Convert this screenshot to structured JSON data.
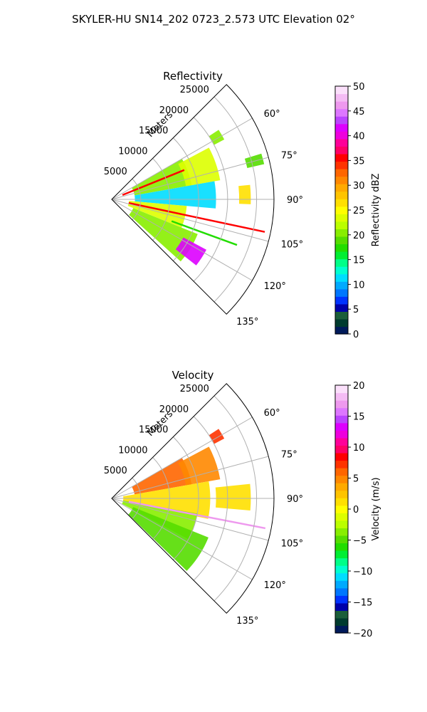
{
  "figure": {
    "title": "SKYLER-HU  SN14_202  0723_2.573 UTC Elevation 02°"
  },
  "chart_data": [
    {
      "type": "heatmap",
      "projection": "polar-sector",
      "title": "Reflectivity",
      "radial_axis_label": "Meters",
      "radial_ticks": [
        "5000",
        "10000",
        "15000",
        "20000",
        "25000"
      ],
      "radial_tick_values": [
        5000,
        10000,
        15000,
        20000,
        25000
      ],
      "radial_range": [
        0,
        28000
      ],
      "azimuth_range_deg": [
        45,
        135
      ],
      "azimuth_ticks": [
        "60°",
        "75°",
        "90°",
        "105°",
        "120°",
        "135°"
      ],
      "azimuth_tick_values": [
        60,
        75,
        90,
        105,
        120,
        135
      ],
      "grid": true,
      "colorbar": {
        "label": "Reflectivity dBZ",
        "range": [
          0,
          50
        ],
        "ticks": [
          "0",
          "5",
          "10",
          "15",
          "20",
          "25",
          "30",
          "35",
          "40",
          "45",
          "50"
        ],
        "tick_values": [
          0,
          5,
          10,
          15,
          20,
          25,
          30,
          35,
          40,
          45,
          50
        ],
        "colors": [
          "#001a5a",
          "#003b2e",
          "#1b5e3a",
          "#0000aa",
          "#0033ff",
          "#0077ff",
          "#00aaff",
          "#00ddff",
          "#00ffd0",
          "#00ff88",
          "#00ee33",
          "#22dd00",
          "#55dd00",
          "#88ee00",
          "#bbff00",
          "#ddff00",
          "#ffff00",
          "#ffe000",
          "#ffc400",
          "#ffaa00",
          "#ff8800",
          "#ff6600",
          "#ff3300",
          "#ff0000",
          "#ff0066",
          "#ff0099",
          "#ee00dd",
          "#dd00ff",
          "#bb44ff",
          "#dd77ff",
          "#ee99ee",
          "#f4bbf4",
          "#fbe0fb"
        ]
      },
      "features": [
        {
          "az": [
            57,
            62
          ],
          "r": [
            20000,
            22000
          ],
          "value": 20
        },
        {
          "az": [
            60,
            80
          ],
          "r": [
            4000,
            14000
          ],
          "value": 21
        },
        {
          "az": [
            62,
            80
          ],
          "r": [
            13000,
            19000
          ],
          "value": 23
        },
        {
          "az": [
            80,
            95
          ],
          "r": [
            4000,
            18000
          ],
          "value": 12
        },
        {
          "az": [
            95,
            112
          ],
          "r": [
            3000,
            13000
          ],
          "value": 23
        },
        {
          "az": [
            112,
            132
          ],
          "r": [
            4000,
            16000
          ],
          "value": 20
        },
        {
          "az": [
            118,
            128
          ],
          "r": [
            14000,
            18500
          ],
          "value": 42
        },
        {
          "az": [
            84,
            92
          ],
          "r": [
            22000,
            24000
          ],
          "value": 27
        },
        {
          "az": [
            73,
            77
          ],
          "r": [
            24000,
            27000
          ],
          "value": 19
        }
      ],
      "radials": [
        {
          "az": 68,
          "r": [
            2000,
            13500
          ],
          "value": 36
        },
        {
          "az": 102,
          "r": [
            3000,
            27000
          ],
          "value": 35
        },
        {
          "az": 110,
          "r": [
            11000,
            23000
          ],
          "value": 17
        }
      ]
    },
    {
      "type": "heatmap",
      "projection": "polar-sector",
      "title": "Velocity",
      "radial_axis_label": "Meters",
      "radial_ticks": [
        "5000",
        "10000",
        "15000",
        "20000",
        "25000"
      ],
      "radial_tick_values": [
        5000,
        10000,
        15000,
        20000,
        25000
      ],
      "radial_range": [
        0,
        28000
      ],
      "azimuth_range_deg": [
        45,
        135
      ],
      "azimuth_ticks": [
        "60°",
        "75°",
        "90°",
        "105°",
        "120°",
        "135°"
      ],
      "azimuth_tick_values": [
        60,
        75,
        90,
        105,
        120,
        135
      ],
      "grid": true,
      "colorbar": {
        "label": "Velocity (m/s)",
        "range": [
          -20,
          20
        ],
        "ticks": [
          "−20",
          "−15",
          "−10",
          "−5",
          "0",
          "5",
          "10",
          "15",
          "20"
        ],
        "tick_values": [
          -20,
          -15,
          -10,
          -5,
          0,
          5,
          10,
          15,
          20
        ],
        "colors": [
          "#001a5a",
          "#003b2e",
          "#1b5e3a",
          "#0000aa",
          "#0033ff",
          "#0077ff",
          "#00aaff",
          "#00ddff",
          "#00ffd0",
          "#00ff88",
          "#00ee33",
          "#22dd00",
          "#55dd00",
          "#88ee00",
          "#bbff00",
          "#ddff00",
          "#ffff00",
          "#ffe000",
          "#ffc400",
          "#ffaa00",
          "#ff8800",
          "#ff6600",
          "#ff3300",
          "#ff0000",
          "#ff0066",
          "#ff0099",
          "#ee00dd",
          "#dd00ff",
          "#bb44ff",
          "#dd77ff",
          "#ee99ee",
          "#f4bbf4",
          "#fbe0fb"
        ]
      },
      "features": [
        {
          "az": [
            57,
            62
          ],
          "r": [
            20000,
            22000
          ],
          "value": 7
        },
        {
          "az": [
            60,
            80
          ],
          "r": [
            4000,
            14000
          ],
          "value": 6
        },
        {
          "az": [
            62,
            80
          ],
          "r": [
            13000,
            19000
          ],
          "value": 5
        },
        {
          "az": [
            80,
            102
          ],
          "r": [
            2000,
            17000
          ],
          "value": 1
        },
        {
          "az": [
            100,
            118
          ],
          "r": [
            2000,
            15000
          ],
          "value": -4
        },
        {
          "az": [
            112,
            134
          ],
          "r": [
            4000,
            18000
          ],
          "value": -5
        },
        {
          "az": [
            84,
            95
          ],
          "r": [
            18000,
            24000
          ],
          "value": 1
        }
      ],
      "radials": [
        {
          "az": 101,
          "r": [
            3000,
            27000
          ],
          "value": 17
        }
      ]
    }
  ]
}
